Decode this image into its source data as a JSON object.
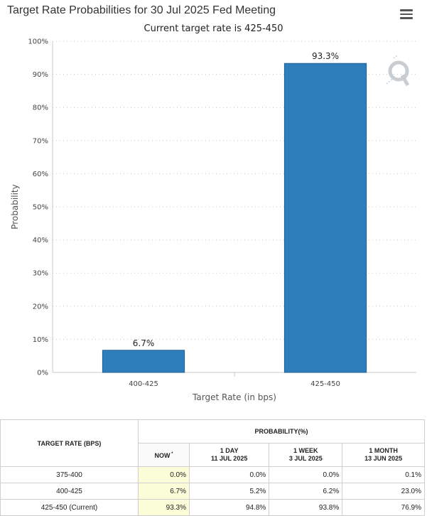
{
  "header": {
    "title": "Target Rate Probabilities for 30 Jul 2025 Fed Meeting",
    "subtitle": "Current target rate is 425-450",
    "menu_icon": "hamburger-menu-icon"
  },
  "chart_data": {
    "type": "bar",
    "title": "Target Rate Probabilities for 30 Jul 2025 Fed Meeting",
    "subtitle": "Current target rate is 425-450",
    "categories": [
      "400-425",
      "425-450"
    ],
    "values": [
      6.7,
      93.3
    ],
    "data_labels": [
      "6.7%",
      "93.3%"
    ],
    "xlabel": "Target Rate (in bps)",
    "ylabel": "Probability",
    "ylim": [
      0,
      100
    ],
    "yticks": [
      0,
      10,
      20,
      30,
      40,
      50,
      60,
      70,
      80,
      90,
      100
    ],
    "ytick_labels": [
      "0%",
      "10%",
      "20%",
      "30%",
      "40%",
      "50%",
      "60%",
      "70%",
      "80%",
      "90%",
      "100%"
    ],
    "grid": true,
    "bar_color": "#2f7ebc",
    "bar_border": "#1f5e94",
    "grid_color": "#c8c8c8"
  },
  "table": {
    "col_rate": "TARGET RATE (BPS)",
    "col_prob": "PROBABILITY(%)",
    "sub_headers": [
      {
        "line1": "NOW",
        "line2": "",
        "sup": "*"
      },
      {
        "line1": "1 DAY",
        "line2": "11 JUL 2025",
        "sup": ""
      },
      {
        "line1": "1 WEEK",
        "line2": "3 JUL 2025",
        "sup": ""
      },
      {
        "line1": "1 MONTH",
        "line2": "13 JUN 2025",
        "sup": ""
      }
    ],
    "rows": [
      {
        "rate": "375-400",
        "values": [
          "0.0%",
          "0.0%",
          "0.0%",
          "0.1%"
        ]
      },
      {
        "rate": "400-425",
        "values": [
          "6.7%",
          "5.2%",
          "6.2%",
          "23.0%"
        ]
      },
      {
        "rate": "425-450 (Current)",
        "values": [
          "93.3%",
          "94.8%",
          "93.8%",
          "76.9%"
        ]
      }
    ],
    "now_highlight_color": "#fbfdd9"
  }
}
